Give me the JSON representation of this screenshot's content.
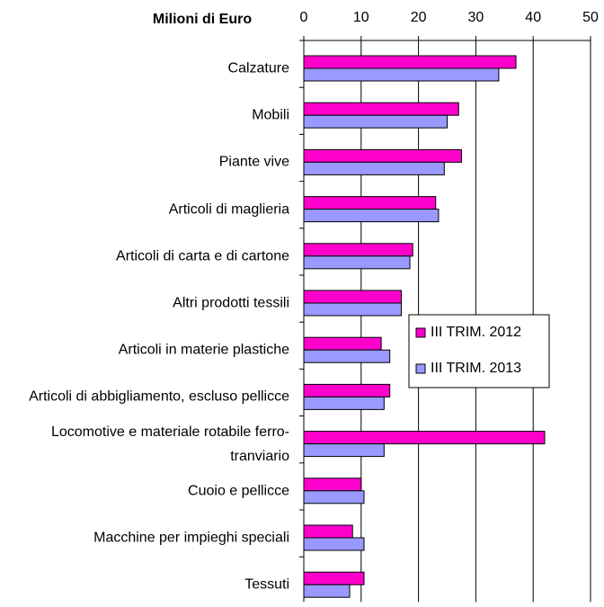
{
  "chart_data": {
    "type": "bar",
    "orientation": "horizontal",
    "x_axis_label": "Milioni di Euro",
    "categories": [
      "Calzature",
      "Mobili",
      "Piante vive",
      "Articoli di maglieria",
      "Articoli di carta e di cartone",
      "Altri prodotti tessili",
      "Articoli in materie plastiche",
      "Articoli di abbigliamento, escluso pellicce",
      "Locomotive e materiale rotabile ferro-tranviario",
      "Cuoio e pellicce",
      "Macchine per impieghi speciali",
      "Tessuti"
    ],
    "series": [
      {
        "name": "III TRIM. 2012",
        "color": "#ff00cc",
        "values": [
          37,
          27,
          27.5,
          23,
          19,
          17,
          13.5,
          15,
          42,
          10,
          8.5,
          10.5
        ]
      },
      {
        "name": "III TRIM. 2013",
        "color": "#9999ff",
        "values": [
          34,
          25,
          24.5,
          23.5,
          18.5,
          17,
          15,
          14,
          14,
          10.5,
          10.5,
          8
        ]
      }
    ],
    "xlim": [
      0,
      50
    ],
    "xticks": [
      0,
      10,
      20,
      30,
      40,
      50
    ],
    "grid": true
  }
}
